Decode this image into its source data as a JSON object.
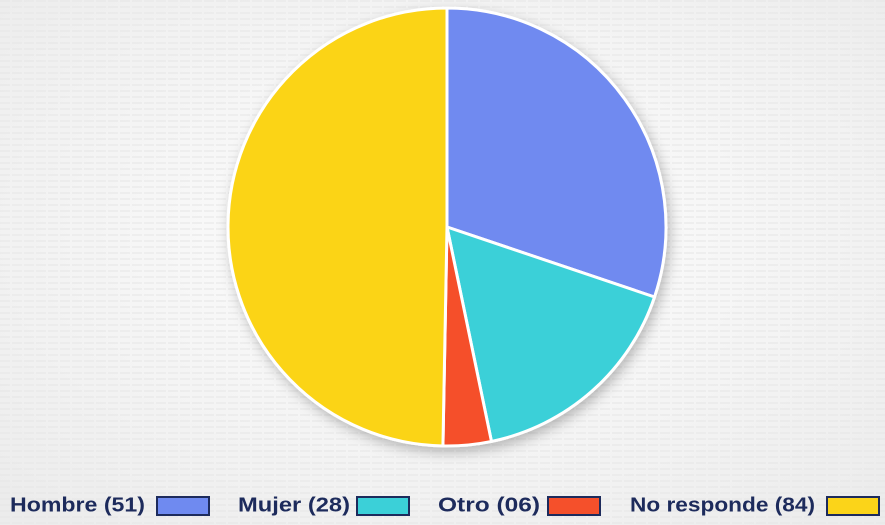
{
  "chart_data": {
    "type": "pie",
    "categories": [
      "Hombre (51)",
      "Mujer (28)",
      "Otro (06)",
      "No responde (84)"
    ],
    "values": [
      51,
      28,
      6,
      84
    ],
    "colors": [
      "#6f8af0",
      "#3bd0d8",
      "#f5502b",
      "#fbd419"
    ],
    "legend": "bottom"
  }
}
